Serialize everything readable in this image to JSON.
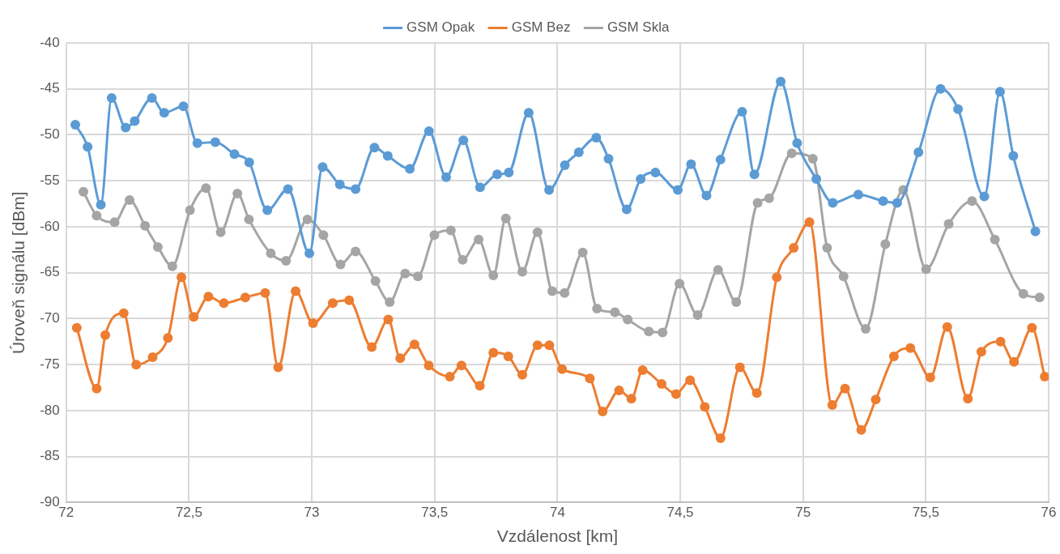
{
  "chart_data": {
    "type": "line",
    "xlabel": "Vzdálenost [km]",
    "ylabel": "Úroveň signálu [dBm]",
    "xlim": [
      72,
      76
    ],
    "xticks": [
      72,
      {
        "value": 72.5,
        "label": "72,5"
      },
      73,
      {
        "value": 73.5,
        "label": "73,5"
      },
      74,
      {
        "value": 74.5,
        "label": "74,5"
      },
      75,
      {
        "value": 75.5,
        "label": "75,5"
      },
      76
    ],
    "ylim": [
      -90,
      -40
    ],
    "yticks": [
      -90,
      -85,
      -80,
      -75,
      -70,
      -65,
      -60,
      -55,
      -50,
      -45,
      -40
    ],
    "grid": true,
    "legend": "top",
    "marker": "circle",
    "line_style": "solid",
    "series": [
      {
        "name": "GSM Opak",
        "color": "#5b9bd5",
        "x": [
          72.037,
          72.087,
          72.141,
          72.185,
          72.242,
          72.279,
          72.349,
          72.399,
          72.477,
          72.534,
          72.607,
          72.685,
          72.745,
          72.819,
          72.903,
          72.99,
          73.044,
          73.114,
          73.178,
          73.255,
          73.309,
          73.399,
          73.477,
          73.547,
          73.617,
          73.685,
          73.755,
          73.802,
          73.883,
          73.966,
          74.03,
          74.087,
          74.158,
          74.208,
          74.282,
          74.339,
          74.399,
          74.49,
          74.544,
          74.607,
          74.664,
          74.752,
          74.802,
          74.909,
          74.976,
          75.054,
          75.121,
          75.225,
          75.326,
          75.383,
          75.47,
          75.56,
          75.631,
          75.738,
          75.802,
          75.856,
          75.946
        ],
        "values": [
          -48.9,
          -51.3,
          -57.6,
          -46.0,
          -49.2,
          -48.5,
          -46.0,
          -47.6,
          -46.9,
          -50.9,
          -50.8,
          -52.1,
          -53.0,
          -58.2,
          -55.9,
          -62.9,
          -53.5,
          -55.4,
          -55.9,
          -51.4,
          -52.3,
          -53.7,
          -49.6,
          -54.6,
          -50.6,
          -55.7,
          -54.3,
          -54.1,
          -47.6,
          -56.0,
          -53.3,
          -51.9,
          -50.3,
          -52.6,
          -58.1,
          -54.8,
          -54.1,
          -56.0,
          -53.2,
          -56.6,
          -52.7,
          -47.5,
          -54.3,
          -44.2,
          -50.9,
          -54.8,
          -57.4,
          -56.5,
          -57.2,
          -57.4,
          -51.9,
          -45.0,
          -47.2,
          -56.7,
          -45.3,
          -52.3,
          -60.5
        ]
      },
      {
        "name": "GSM Bez",
        "color": "#ed7d31",
        "x": [
          72.043,
          72.124,
          72.159,
          72.234,
          72.285,
          72.352,
          72.414,
          72.469,
          72.519,
          72.579,
          72.642,
          72.729,
          72.81,
          72.863,
          72.934,
          73.005,
          73.085,
          73.152,
          73.244,
          73.311,
          73.36,
          73.418,
          73.476,
          73.562,
          73.609,
          73.684,
          73.739,
          73.8,
          73.857,
          73.919,
          73.967,
          74.019,
          74.132,
          74.184,
          74.251,
          74.301,
          74.347,
          74.424,
          74.483,
          74.54,
          74.6,
          74.664,
          74.743,
          74.812,
          74.893,
          74.962,
          75.026,
          75.119,
          75.171,
          75.237,
          75.296,
          75.37,
          75.437,
          75.518,
          75.587,
          75.671,
          75.726,
          75.804,
          75.859,
          75.932,
          75.984
        ],
        "values": [
          -71.0,
          -77.6,
          -71.8,
          -69.4,
          -75.0,
          -74.2,
          -72.1,
          -65.5,
          -69.8,
          -67.6,
          -68.3,
          -67.7,
          -67.2,
          -75.3,
          -67.0,
          -70.5,
          -68.3,
          -68.0,
          -73.1,
          -70.1,
          -74.3,
          -72.8,
          -75.1,
          -76.3,
          -75.1,
          -77.3,
          -73.7,
          -74.1,
          -76.1,
          -72.9,
          -72.9,
          -75.5,
          -76.5,
          -80.1,
          -77.8,
          -78.7,
          -75.6,
          -77.1,
          -78.2,
          -76.7,
          -79.6,
          -83.0,
          -75.3,
          -78.1,
          -65.5,
          -62.3,
          -59.5,
          -79.4,
          -77.6,
          -82.1,
          -78.8,
          -74.1,
          -73.2,
          -76.4,
          -70.9,
          -78.7,
          -73.6,
          -72.5,
          -74.7,
          -71.0,
          -76.3
        ]
      },
      {
        "name": "GSM Skla",
        "color": "#a5a5a5",
        "x": [
          72.07,
          72.124,
          72.197,
          72.258,
          72.321,
          72.373,
          72.432,
          72.504,
          72.569,
          72.629,
          72.697,
          72.744,
          72.833,
          72.895,
          72.982,
          73.047,
          73.117,
          73.178,
          73.259,
          73.317,
          73.38,
          73.432,
          73.499,
          73.566,
          73.614,
          73.679,
          73.739,
          73.79,
          73.857,
          73.919,
          73.979,
          74.029,
          74.103,
          74.161,
          74.234,
          74.286,
          74.372,
          74.428,
          74.497,
          74.571,
          74.654,
          74.728,
          74.815,
          74.862,
          74.954,
          75.04,
          75.098,
          75.165,
          75.255,
          75.335,
          75.408,
          75.501,
          75.593,
          75.688,
          75.781,
          75.897,
          75.963
        ],
        "values": [
          -56.2,
          -58.8,
          -59.5,
          -57.1,
          -59.9,
          -62.2,
          -64.3,
          -58.2,
          -55.8,
          -60.6,
          -56.4,
          -59.2,
          -62.9,
          -63.7,
          -59.2,
          -60.9,
          -64.1,
          -62.7,
          -65.9,
          -68.2,
          -65.1,
          -65.4,
          -60.9,
          -60.4,
          -63.6,
          -61.4,
          -65.3,
          -59.1,
          -64.9,
          -60.6,
          -67.0,
          -67.2,
          -62.8,
          -68.9,
          -69.3,
          -70.1,
          -71.4,
          -71.5,
          -66.2,
          -69.6,
          -64.7,
          -68.2,
          -57.4,
          -56.9,
          -52.0,
          -52.6,
          -62.3,
          -65.4,
          -71.1,
          -61.9,
          -56.0,
          -64.6,
          -59.7,
          -57.2,
          -61.4,
          -67.3,
          -67.7
        ]
      }
    ]
  }
}
